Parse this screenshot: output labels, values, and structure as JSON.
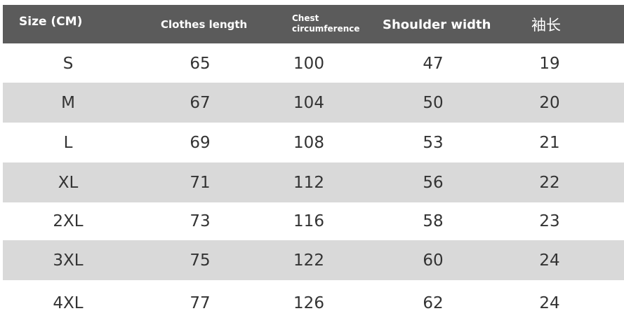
{
  "headers": [
    "Size (CM)",
    "Clothes length",
    "Chest circumference",
    "Shoulder width",
    "袖长"
  ],
  "header_chest_lines": [
    "Chest",
    "circumference"
  ],
  "rows": [
    [
      "S",
      "65",
      "100",
      "47",
      "19"
    ],
    [
      "M",
      "67",
      "104",
      "50",
      "20"
    ],
    [
      "L",
      "69",
      "108",
      "53",
      "21"
    ],
    [
      "XL",
      "71",
      "112",
      "56",
      "22"
    ],
    [
      "2XL",
      "73",
      "116",
      "58",
      "23"
    ],
    [
      "3XL",
      "75",
      "122",
      "60",
      "24"
    ],
    [
      "4XL",
      "77",
      "126",
      "62",
      "24"
    ]
  ],
  "colors": {
    "header_bg": "#5b5b5b",
    "alt_row_bg": "#d9d9d9",
    "text": "#333333"
  }
}
